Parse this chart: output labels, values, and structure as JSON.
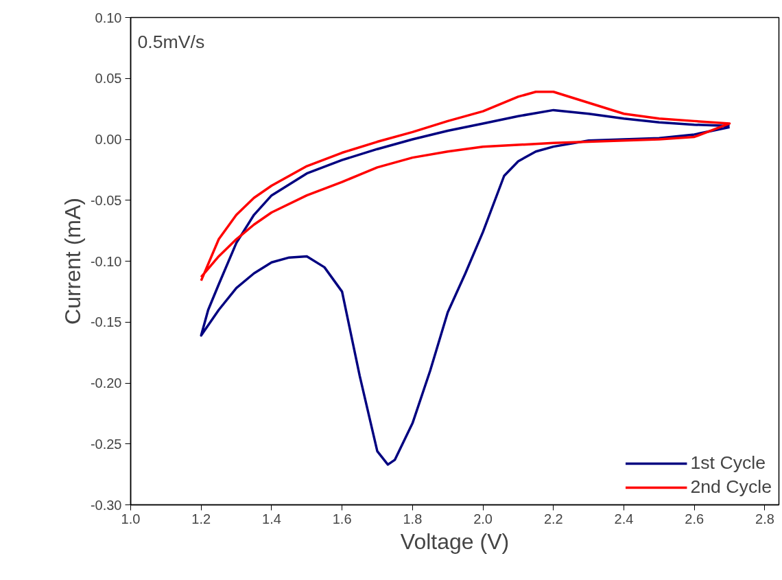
{
  "chart_data": {
    "type": "line",
    "xlabel": "Voltage (V)",
    "ylabel": "Current (mA)",
    "annotations": [
      "0.5mV/s"
    ],
    "xlim": [
      1.0,
      2.84
    ],
    "xticks": [
      {
        "value": 1.0,
        "label": "1.0"
      },
      1.2,
      1.4,
      1.6,
      1.8,
      {
        "value": 2.0,
        "label": "2.0"
      },
      2.2,
      2.4,
      2.6,
      2.8
    ],
    "ylim": [
      -0.3,
      0.1
    ],
    "yticks": [
      {
        "value": -0.3,
        "label": "-0.30"
      },
      {
        "value": -0.25,
        "label": "-0.25"
      },
      {
        "value": -0.2,
        "label": "-0.20"
      },
      {
        "value": -0.15,
        "label": "-0.15"
      },
      {
        "value": -0.1,
        "label": "-0.10"
      },
      {
        "value": -0.05,
        "label": "-0.05"
      },
      {
        "value": 0,
        "label": "0.00"
      },
      {
        "value": 0.05,
        "label": "0.05"
      },
      {
        "value": 0.1,
        "label": "0.10"
      }
    ],
    "grid": false,
    "legend": "bottom right",
    "marker": "none",
    "line_style": "solid",
    "series": [
      {
        "name": "1st Cycle",
        "color": "#000080",
        "x": [
          2.7,
          2.6,
          2.5,
          2.4,
          2.3,
          2.2,
          2.15,
          2.1,
          2.06,
          2.0,
          1.95,
          1.9,
          1.85,
          1.8,
          1.75,
          1.73,
          1.7,
          1.65,
          1.6,
          1.55,
          1.5,
          1.45,
          1.4,
          1.35,
          1.3,
          1.25,
          1.2,
          1.22,
          1.25,
          1.3,
          1.35,
          1.4,
          1.5,
          1.6,
          1.7,
          1.8,
          1.9,
          2.0,
          2.1,
          2.2,
          2.3,
          2.4,
          2.5,
          2.6,
          2.7
        ],
        "values": [
          0.01,
          0.004,
          0.001,
          0.0,
          -0.001,
          -0.006,
          -0.01,
          -0.018,
          -0.03,
          -0.076,
          -0.11,
          -0.142,
          -0.19,
          -0.233,
          -0.263,
          -0.267,
          -0.256,
          -0.194,
          -0.125,
          -0.105,
          -0.096,
          -0.097,
          -0.101,
          -0.11,
          -0.122,
          -0.14,
          -0.161,
          -0.14,
          -0.119,
          -0.085,
          -0.062,
          -0.046,
          -0.028,
          -0.017,
          -0.008,
          0.0,
          0.007,
          0.013,
          0.019,
          0.024,
          0.021,
          0.017,
          0.014,
          0.012,
          0.011
        ]
      },
      {
        "name": "2nd Cycle",
        "color": "#ff0000",
        "x": [
          1.2,
          1.25,
          1.3,
          1.35,
          1.4,
          1.5,
          1.6,
          1.7,
          1.8,
          1.9,
          2.0,
          2.1,
          2.15,
          2.2,
          2.3,
          2.4,
          2.5,
          2.6,
          2.7,
          2.6,
          2.5,
          2.4,
          2.2,
          2.0,
          1.9,
          1.8,
          1.7,
          1.6,
          1.5,
          1.4,
          1.35,
          1.3,
          1.25,
          1.2
        ],
        "values": [
          -0.116,
          -0.082,
          -0.062,
          -0.048,
          -0.038,
          -0.022,
          -0.011,
          -0.002,
          0.006,
          0.015,
          0.023,
          0.035,
          0.039,
          0.039,
          0.03,
          0.021,
          0.017,
          0.015,
          0.013,
          0.002,
          0.0,
          -0.001,
          -0.003,
          -0.006,
          -0.01,
          -0.015,
          -0.023,
          -0.035,
          -0.046,
          -0.06,
          -0.07,
          -0.082,
          -0.096,
          -0.113
        ]
      }
    ]
  }
}
